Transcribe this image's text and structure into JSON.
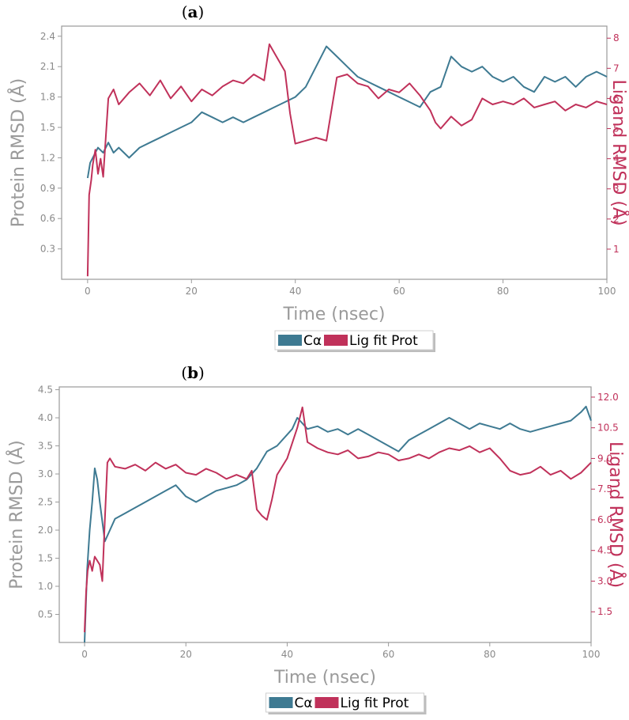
{
  "colors": {
    "protein": "#3e7a92",
    "ligand": "#c0315a",
    "axis": "#8a8a8a"
  },
  "chart_data": [
    {
      "panel_label": "a",
      "type": "line",
      "xlabel": "Time (nsec)",
      "ylabel": "Protein RMSD (Å)",
      "y2label": "Ligand RMSD (Å)",
      "xlim": [
        -5,
        100
      ],
      "ylim": [
        0,
        2.5
      ],
      "y2lim": [
        0,
        8.4
      ],
      "xticks": [
        0,
        20,
        40,
        60,
        80,
        100
      ],
      "yticks": [
        0.3,
        0.6,
        0.9,
        1.2,
        1.5,
        1.8,
        2.1,
        2.4
      ],
      "y2ticks": [
        1,
        2,
        3,
        4,
        5,
        6,
        7,
        8
      ],
      "legend": [
        "Cα",
        "Lig fit Prot"
      ],
      "legend_position": "below",
      "series": [
        {
          "name": "Cα",
          "axis": "left",
          "x": [
            0,
            0.5,
            1,
            2,
            3,
            4,
            5,
            6,
            8,
            10,
            12,
            14,
            16,
            18,
            20,
            22,
            24,
            26,
            28,
            30,
            32,
            34,
            36,
            38,
            40,
            42,
            44,
            46,
            48,
            50,
            52,
            54,
            56,
            58,
            60,
            62,
            64,
            66,
            68,
            70,
            72,
            74,
            76,
            78,
            80,
            82,
            84,
            86,
            88,
            90,
            92,
            94,
            96,
            98,
            100
          ],
          "y": [
            1.0,
            1.15,
            1.2,
            1.3,
            1.25,
            1.35,
            1.25,
            1.3,
            1.2,
            1.3,
            1.35,
            1.4,
            1.45,
            1.5,
            1.55,
            1.65,
            1.6,
            1.55,
            1.6,
            1.55,
            1.6,
            1.65,
            1.7,
            1.75,
            1.8,
            1.9,
            2.1,
            2.3,
            2.2,
            2.1,
            2.0,
            1.95,
            1.9,
            1.85,
            1.8,
            1.75,
            1.7,
            1.85,
            1.9,
            2.2,
            2.1,
            2.05,
            2.1,
            2.0,
            1.95,
            2.0,
            1.9,
            1.85,
            2.0,
            1.95,
            2.0,
            1.9,
            2.0,
            2.05,
            2.0
          ]
        },
        {
          "name": "Lig fit Prot",
          "axis": "right",
          "x": [
            0,
            0.3,
            0.7,
            1,
            1.5,
            2,
            2.5,
            3,
            4,
            5,
            6,
            8,
            10,
            12,
            14,
            16,
            18,
            20,
            22,
            24,
            26,
            28,
            30,
            32,
            34,
            35,
            36,
            38,
            39,
            40,
            42,
            44,
            46,
            48,
            50,
            52,
            54,
            56,
            58,
            60,
            62,
            64,
            66,
            67,
            68,
            70,
            72,
            74,
            76,
            78,
            80,
            82,
            84,
            86,
            88,
            90,
            92,
            94,
            96,
            98,
            100
          ],
          "y": [
            0.1,
            2.8,
            3.3,
            3.8,
            4.3,
            3.5,
            4.0,
            3.4,
            6.0,
            6.3,
            5.8,
            6.2,
            6.5,
            6.1,
            6.6,
            6.0,
            6.4,
            5.9,
            6.3,
            6.1,
            6.4,
            6.6,
            6.5,
            6.8,
            6.6,
            7.8,
            7.5,
            6.9,
            5.5,
            4.5,
            4.6,
            4.7,
            4.6,
            6.7,
            6.8,
            6.5,
            6.4,
            6.0,
            6.3,
            6.2,
            6.5,
            6.1,
            5.6,
            5.2,
            5.0,
            5.4,
            5.1,
            5.3,
            6.0,
            5.8,
            5.9,
            5.8,
            6.0,
            5.7,
            5.8,
            5.9,
            5.6,
            5.8,
            5.7,
            5.9,
            5.8
          ]
        }
      ]
    },
    {
      "panel_label": "b",
      "type": "line",
      "xlabel": "Time (nsec)",
      "ylabel": "Protein RMSD (Å)",
      "y2label": "Ligand RMSD (Å)",
      "xlim": [
        -5,
        100
      ],
      "ylim": [
        0,
        4.55
      ],
      "y2lim": [
        0,
        12.5
      ],
      "xticks": [
        0,
        20,
        40,
        60,
        80,
        100
      ],
      "yticks": [
        0.5,
        1.0,
        1.5,
        2.0,
        2.5,
        3.0,
        3.5,
        4.0,
        4.5
      ],
      "y2ticks": [
        1.5,
        3.0,
        4.5,
        6.0,
        7.5,
        9.0,
        10.5,
        12.0
      ],
      "legend": [
        "Cα",
        "Lig fit Prot"
      ],
      "legend_position": "below",
      "series": [
        {
          "name": "Cα",
          "axis": "left",
          "x": [
            0,
            0.5,
            1,
            1.5,
            2,
            2.5,
            3,
            4,
            5,
            6,
            8,
            10,
            12,
            14,
            16,
            18,
            20,
            22,
            24,
            26,
            28,
            30,
            32,
            34,
            36,
            38,
            40,
            41,
            42,
            43,
            44,
            46,
            48,
            50,
            52,
            54,
            56,
            58,
            60,
            62,
            64,
            66,
            68,
            70,
            72,
            74,
            76,
            78,
            80,
            82,
            84,
            86,
            88,
            90,
            92,
            94,
            96,
            98,
            99,
            100
          ],
          "y": [
            0.0,
            1.3,
            2.0,
            2.5,
            3.1,
            2.9,
            2.5,
            1.8,
            2.0,
            2.2,
            2.3,
            2.4,
            2.5,
            2.6,
            2.7,
            2.8,
            2.6,
            2.5,
            2.6,
            2.7,
            2.75,
            2.8,
            2.9,
            3.1,
            3.4,
            3.5,
            3.7,
            3.8,
            4.0,
            3.9,
            3.8,
            3.85,
            3.75,
            3.8,
            3.7,
            3.8,
            3.7,
            3.6,
            3.5,
            3.4,
            3.6,
            3.7,
            3.8,
            3.9,
            4.0,
            3.9,
            3.8,
            3.9,
            3.85,
            3.8,
            3.9,
            3.8,
            3.75,
            3.8,
            3.85,
            3.9,
            3.95,
            4.1,
            4.2,
            3.95
          ]
        },
        {
          "name": "Lig fit Prot",
          "axis": "right",
          "x": [
            0,
            0.3,
            0.6,
            1,
            1.5,
            2,
            3,
            3.5,
            4,
            4.5,
            5,
            6,
            8,
            10,
            12,
            14,
            16,
            18,
            20,
            22,
            24,
            26,
            28,
            30,
            32,
            33,
            34,
            35,
            36,
            37,
            38,
            40,
            42,
            43,
            44,
            46,
            48,
            50,
            52,
            54,
            56,
            58,
            60,
            62,
            64,
            66,
            68,
            70,
            72,
            74,
            76,
            78,
            80,
            82,
            84,
            86,
            88,
            90,
            92,
            94,
            96,
            98,
            100
          ],
          "y": [
            0.5,
            2.5,
            3.5,
            4.0,
            3.5,
            4.2,
            3.8,
            3.0,
            6.0,
            8.8,
            9.0,
            8.6,
            8.5,
            8.7,
            8.4,
            8.8,
            8.5,
            8.7,
            8.3,
            8.2,
            8.5,
            8.3,
            8.0,
            8.2,
            8.0,
            8.4,
            6.5,
            6.2,
            6.0,
            7.0,
            8.2,
            9.0,
            10.5,
            11.5,
            9.8,
            9.5,
            9.3,
            9.2,
            9.4,
            9.0,
            9.1,
            9.3,
            9.2,
            8.9,
            9.0,
            9.2,
            9.0,
            9.3,
            9.5,
            9.4,
            9.6,
            9.3,
            9.5,
            9.0,
            8.4,
            8.2,
            8.3,
            8.6,
            8.2,
            8.4,
            8.0,
            8.3,
            8.8
          ]
        }
      ]
    }
  ]
}
